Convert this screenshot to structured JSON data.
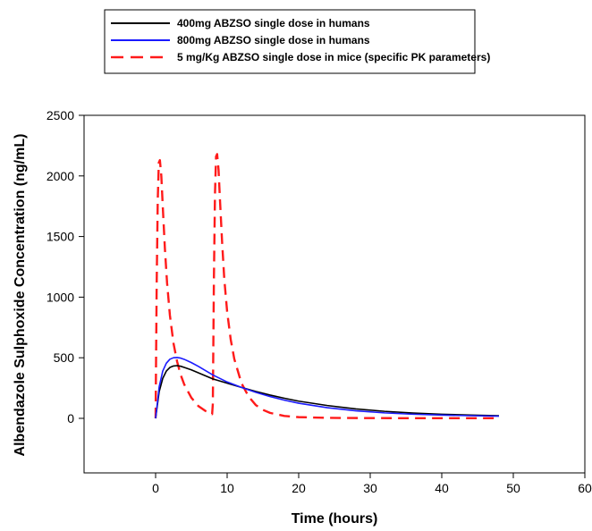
{
  "chart_data": {
    "type": "line",
    "xlabel": "Time (hours)",
    "ylabel": "Albendazole Sulphoxide Concentration (ng/mL)",
    "xlim": [
      -10,
      60
    ],
    "ylim": [
      -450,
      2500
    ],
    "xticks": [
      0,
      10,
      20,
      30,
      40,
      50,
      60
    ],
    "yticks": [
      0,
      500,
      1000,
      1500,
      2000,
      2500
    ],
    "grid": false,
    "legend_position": "top",
    "series": [
      {
        "name": "400mg ABZSO single dose in humans",
        "color": "#000000",
        "dash": "solid",
        "x": [
          0,
          0.5,
          1,
          1.5,
          2,
          2.5,
          3,
          3.5,
          4,
          5,
          6,
          7,
          8,
          10,
          12,
          14,
          16,
          18,
          20,
          24,
          28,
          32,
          36,
          40,
          44,
          48
        ],
        "y": [
          0,
          220,
          330,
          390,
          420,
          432,
          435,
          430,
          420,
          400,
          375,
          350,
          325,
          290,
          255,
          222,
          192,
          166,
          142,
          106,
          78,
          58,
          44,
          34,
          27,
          22
        ]
      },
      {
        "name": "800mg ABZSO single dose in humans",
        "color": "#1a1aff",
        "dash": "solid",
        "x": [
          0,
          0.5,
          1,
          1.5,
          2,
          2.5,
          3,
          3.5,
          4,
          5,
          6,
          7,
          8,
          10,
          12,
          14,
          16,
          18,
          20,
          24,
          28,
          32,
          36,
          40,
          44,
          48
        ],
        "y": [
          0,
          260,
          390,
          455,
          488,
          500,
          502,
          497,
          487,
          460,
          428,
          393,
          358,
          300,
          255,
          215,
          180,
          150,
          125,
          88,
          62,
          45,
          34,
          27,
          22,
          18
        ]
      },
      {
        "name": "5 mg/Kg ABZSO single dose in mice (specific PK parameters)",
        "color": "#ff1a1a",
        "dash": "dashed",
        "x": [
          0,
          0.15,
          0.3,
          0.45,
          0.6,
          0.8,
          1.0,
          1.3,
          1.6,
          2,
          2.5,
          3,
          3.5,
          4,
          5,
          6,
          7,
          7.9,
          8.0,
          8.15,
          8.3,
          8.45,
          8.6,
          8.8,
          9.0,
          9.3,
          9.6,
          10,
          10.5,
          11,
          12,
          13,
          14,
          15,
          16,
          18,
          20,
          24,
          30,
          40,
          48
        ],
        "y": [
          0,
          1100,
          1800,
          2110,
          2130,
          2000,
          1750,
          1400,
          1120,
          850,
          620,
          470,
          360,
          280,
          170,
          100,
          60,
          35,
          120,
          1150,
          1850,
          2160,
          2180,
          2050,
          1800,
          1450,
          1150,
          880,
          650,
          490,
          290,
          180,
          110,
          70,
          45,
          20,
          10,
          4,
          2,
          1,
          1
        ]
      }
    ]
  }
}
